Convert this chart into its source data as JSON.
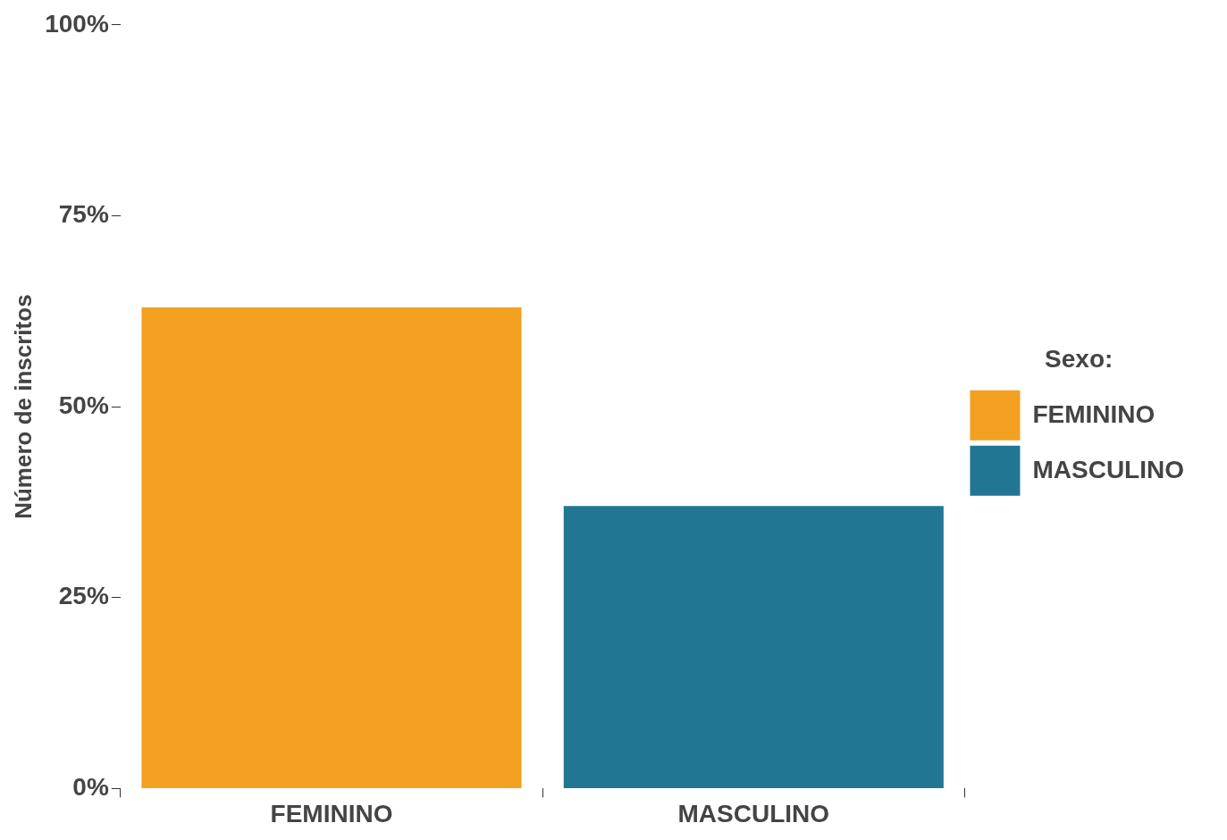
{
  "chart_data": {
    "type": "bar",
    "categories": [
      "FEMININO",
      "MASCULINO"
    ],
    "series": [
      {
        "name": "FEMININO",
        "color": "#f3a020",
        "values": [
          63,
          null
        ]
      },
      {
        "name": "MASCULINO",
        "color": "#217793",
        "values": [
          null,
          37
        ]
      }
    ],
    "ylabel": "Número de inscritos",
    "legend_title": "Sexo:",
    "legend": "right",
    "ylim": [
      0,
      100
    ],
    "yticks": [
      {
        "value": 0,
        "label": "0%"
      },
      {
        "value": 25,
        "label": "25%"
      },
      {
        "value": 50,
        "label": "50%"
      },
      {
        "value": 75,
        "label": "75%"
      },
      {
        "value": 100,
        "label": "100%"
      }
    ]
  }
}
